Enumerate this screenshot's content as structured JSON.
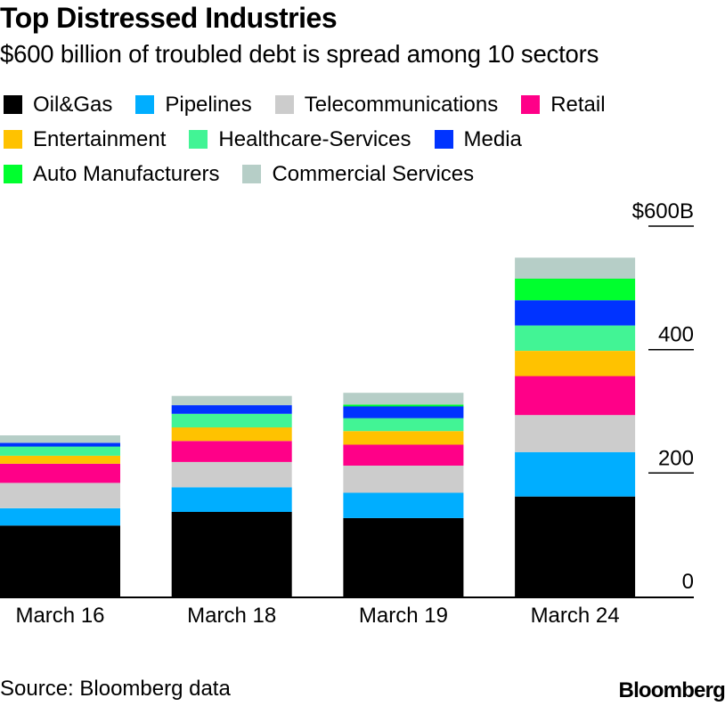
{
  "header": {
    "title": "Top Distressed Industries",
    "subtitle": "$600 billion of troubled debt is spread among 10 sectors"
  },
  "legend": {
    "rows": [
      [
        {
          "label": "Oil&Gas",
          "color": "#000000"
        },
        {
          "label": "Pipelines",
          "color": "#00AEFF"
        },
        {
          "label": "Telecommunications",
          "color": "#CCCCCC"
        },
        {
          "label": "Retail",
          "color": "#FF0088"
        }
      ],
      [
        {
          "label": "Entertainment",
          "color": "#FFC200"
        },
        {
          "label": "Healthcare-Services",
          "color": "#42F495"
        },
        {
          "label": "Media",
          "color": "#0033FF"
        }
      ],
      [
        {
          "label": "Auto Manufacturers",
          "color": "#00FF2E"
        },
        {
          "label": "Commercial Services",
          "color": "#B6CEC7"
        }
      ]
    ]
  },
  "chart_data": {
    "type": "bar",
    "stacked": true,
    "title": "Top Distressed Industries",
    "subtitle": "$600 billion of troubled debt is spread among 10 sectors",
    "xlabel": "",
    "ylabel": "",
    "categories": [
      "March 16",
      "March 18",
      "March 19",
      "March 24"
    ],
    "ylim": [
      0,
      600
    ],
    "yticks": [
      0,
      200,
      400,
      600
    ],
    "ytick_labels": [
      "0",
      "200",
      "400",
      "$600B"
    ],
    "y_axis_position": "right",
    "grid": false,
    "legend_position": "top",
    "series": [
      {
        "name": "Oil&Gas",
        "color": "#000000",
        "values": [
          115,
          137,
          127,
          162
        ]
      },
      {
        "name": "Pipelines",
        "color": "#00AEFF",
        "values": [
          28,
          40,
          41,
          72
        ]
      },
      {
        "name": "Telecommunications",
        "color": "#CCCCCC",
        "values": [
          41,
          41,
          44,
          60
        ]
      },
      {
        "name": "Retail",
        "color": "#FF0088",
        "values": [
          31,
          34,
          34,
          63
        ]
      },
      {
        "name": "Entertainment",
        "color": "#FFC200",
        "values": [
          13,
          22,
          22,
          41
        ]
      },
      {
        "name": "Healthcare-Services",
        "color": "#42F495",
        "values": [
          15,
          22,
          21,
          41
        ]
      },
      {
        "name": "Media",
        "color": "#0033FF",
        "values": [
          6,
          14,
          19,
          41
        ]
      },
      {
        "name": "Auto Manufacturers",
        "color": "#00FF2E",
        "values": [
          0,
          0,
          3,
          35
        ]
      },
      {
        "name": "Commercial Services",
        "color": "#B6CEC7",
        "values": [
          12,
          15,
          19,
          34
        ]
      }
    ]
  },
  "footer": {
    "source": "Source: Bloomberg data",
    "brand": "Bloomberg"
  }
}
